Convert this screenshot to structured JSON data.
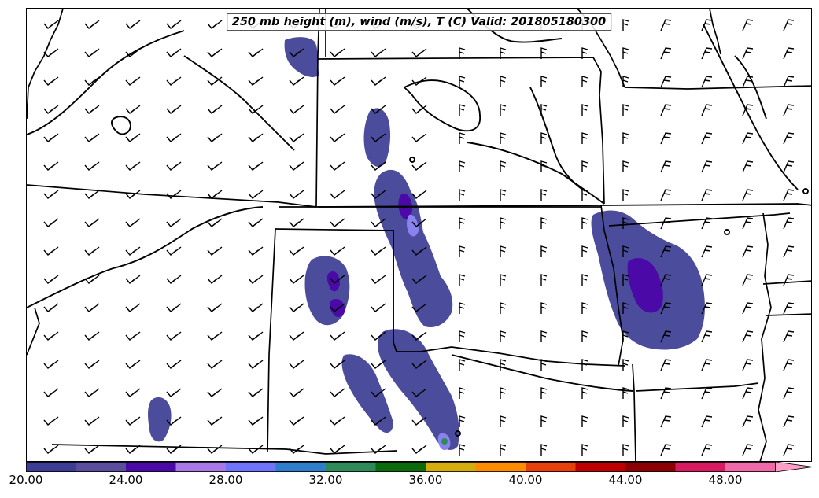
{
  "map": {
    "title": "250 mb height (m), wind (m/s), T (C) Valid: 201805180300",
    "colors": {
      "c1": "#3d3d96",
      "c2": "#5a4d9e",
      "c3": "#4b0aa8",
      "c4": "#a878e6",
      "c5": "#6f74fa",
      "c6": "#2f7ecb",
      "c7": "#2e8b57",
      "c8": "#0b6b0b",
      "c9": "#d4ac0d",
      "c10": "#ff8c00",
      "c11": "#e8400a",
      "c12": "#c00000",
      "c13": "#8b0000",
      "c14": "#d81b60",
      "c15": "#f06aaa",
      "c16": "#ff9ec8"
    }
  },
  "colorbar": {
    "ticks": [
      "20.00",
      "24.00",
      "28.00",
      "32.00",
      "36.00",
      "40.00",
      "44.00",
      "48.00"
    ]
  }
}
